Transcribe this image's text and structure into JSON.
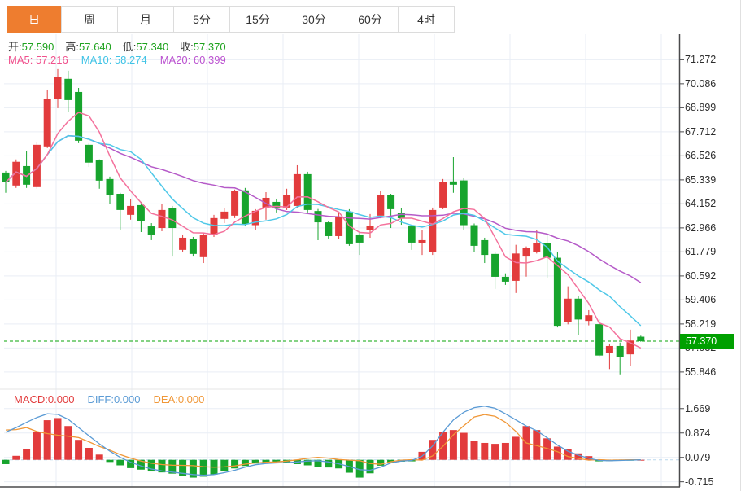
{
  "tabs": [
    {
      "label": "日",
      "active": true
    },
    {
      "label": "周",
      "active": false
    },
    {
      "label": "月",
      "active": false
    },
    {
      "label": "5分",
      "active": false
    },
    {
      "label": "15分",
      "active": false
    },
    {
      "label": "30分",
      "active": false
    },
    {
      "label": "60分",
      "active": false
    },
    {
      "label": "4时",
      "active": false
    }
  ],
  "info": {
    "ohlc": [
      {
        "label": "开:",
        "value": "57.590"
      },
      {
        "label": "高:",
        "value": "57.640"
      },
      {
        "label": "低:",
        "value": "57.340"
      },
      {
        "label": "收:",
        "value": "57.370"
      }
    ],
    "mas": [
      {
        "label": "MA5:",
        "value": "57.216",
        "color": "#f0508c"
      },
      {
        "label": "MA10:",
        "value": "58.274",
        "color": "#3fc3e6"
      },
      {
        "label": "MA20:",
        "value": "60.399",
        "color": "#bb52d0"
      }
    ]
  },
  "macd_info": [
    {
      "label": "MACD:",
      "value": "0.000",
      "color": "#e23b3c"
    },
    {
      "label": "DIFF:",
      "value": "0.000",
      "color": "#5b9bd5"
    },
    {
      "label": "DEA:",
      "value": "0.000",
      "color": "#f09737"
    }
  ],
  "price_axis": {
    "ticks": [
      "71.272",
      "70.086",
      "68.899",
      "67.712",
      "66.526",
      "65.339",
      "64.152",
      "62.966",
      "61.779",
      "60.592",
      "59.406",
      "58.219",
      "57.032",
      "55.846"
    ],
    "last_price": "57.370"
  },
  "macd_axis": {
    "ticks": [
      "1.669",
      "0.874",
      "0.079",
      "-0.715"
    ]
  },
  "colors": {
    "up": "#e23b3c",
    "down": "#17a42d",
    "ma5": "#f4719c",
    "ma10": "#4fc8e8",
    "ma20": "#b55ac8",
    "diff_line": "#5b9bd5",
    "dea_line": "#f09737",
    "accent_tab": "#ee7d2f",
    "last_price_badge": "#00a000",
    "grid": "#e9eef5",
    "axis": "#4a4a4c"
  },
  "chart_data": {
    "type": "candlestick",
    "title": "",
    "legend": [
      "MA5",
      "MA10",
      "MA20",
      "DIFF",
      "DEA",
      "MACD"
    ],
    "price_ticks": [
      71.272,
      70.086,
      68.899,
      67.712,
      66.526,
      65.339,
      64.152,
      62.966,
      61.779,
      60.592,
      59.406,
      58.219,
      57.032,
      55.846
    ],
    "macd_ticks": [
      1.669,
      0.874,
      0.079,
      -0.715
    ],
    "last_close": 57.37,
    "ohlc_today": {
      "open": 57.59,
      "high": 57.64,
      "low": 57.34,
      "close": 57.37
    },
    "ma_last": {
      "ma5": 57.216,
      "ma10": 58.274,
      "ma20": 60.399
    },
    "candles": [
      [
        65.7,
        65.78,
        64.7,
        65.22
      ],
      [
        65.06,
        66.35,
        64.94,
        66.23
      ],
      [
        66.02,
        66.75,
        64.94,
        65.1
      ],
      [
        64.98,
        67.19,
        64.9,
        67.07
      ],
      [
        66.99,
        69.8,
        66.91,
        69.32
      ],
      [
        69.32,
        70.81,
        68.88,
        70.41
      ],
      [
        70.33,
        70.73,
        68.68,
        69.28
      ],
      [
        69.68,
        69.88,
        67.15,
        67.27
      ],
      [
        67.07,
        67.15,
        65.98,
        66.19
      ],
      [
        66.31,
        66.35,
        64.9,
        65.3
      ],
      [
        65.38,
        65.5,
        64.17,
        64.57
      ],
      [
        64.65,
        64.7,
        62.88,
        63.85
      ],
      [
        63.61,
        64.37,
        63.37,
        64.05
      ],
      [
        64.09,
        64.25,
        62.76,
        63.29
      ],
      [
        63.04,
        63.2,
        62.36,
        62.64
      ],
      [
        62.96,
        64.17,
        62.8,
        63.85
      ],
      [
        63.93,
        64.05,
        61.55,
        62.96
      ],
      [
        61.88,
        62.64,
        61.76,
        62.48
      ],
      [
        62.4,
        62.52,
        61.55,
        61.68
      ],
      [
        61.52,
        62.72,
        61.23,
        62.6
      ],
      [
        62.64,
        63.61,
        62.52,
        63.45
      ],
      [
        63.41,
        63.93,
        63.2,
        63.77
      ],
      [
        63.57,
        64.86,
        63.45,
        64.78
      ],
      [
        64.82,
        64.94,
        63.04,
        63.14
      ],
      [
        63.1,
        63.89,
        62.84,
        63.81
      ],
      [
        63.97,
        64.73,
        63.37,
        64.45
      ],
      [
        64.25,
        64.41,
        63.73,
        63.97
      ],
      [
        63.97,
        64.9,
        63.85,
        64.61
      ],
      [
        64.05,
        66.06,
        63.95,
        65.62
      ],
      [
        65.62,
        65.74,
        63.73,
        63.85
      ],
      [
        63.8,
        63.9,
        62.36,
        63.24
      ],
      [
        63.24,
        63.32,
        62.44,
        62.56
      ],
      [
        62.56,
        63.73,
        62.4,
        63.5
      ],
      [
        63.77,
        63.89,
        62.08,
        62.16
      ],
      [
        62.64,
        62.72,
        61.63,
        62.24
      ],
      [
        62.84,
        63.65,
        62.48,
        63.08
      ],
      [
        63.57,
        64.77,
        63.44,
        64.57
      ],
      [
        64.57,
        64.65,
        62.96,
        63.89
      ],
      [
        63.69,
        63.93,
        63.12,
        63.44
      ],
      [
        63.04,
        63.12,
        61.88,
        62.24
      ],
      [
        62.2,
        62.88,
        61.63,
        62.36
      ],
      [
        61.76,
        63.97,
        61.63,
        63.85
      ],
      [
        63.97,
        65.38,
        63.89,
        65.25
      ],
      [
        65.26,
        66.46,
        64.7,
        65.1
      ],
      [
        65.31,
        65.43,
        62.84,
        63.1
      ],
      [
        63.1,
        63.18,
        61.76,
        62.08
      ],
      [
        62.36,
        62.48,
        61.23,
        61.63
      ],
      [
        61.68,
        61.76,
        59.95,
        60.55
      ],
      [
        60.55,
        60.72,
        60.15,
        60.31
      ],
      [
        60.35,
        62.13,
        59.75,
        61.7
      ],
      [
        61.55,
        62.05,
        60.56,
        61.96
      ],
      [
        61.76,
        62.84,
        61.7,
        62.23
      ],
      [
        62.23,
        62.6,
        60.49,
        61.49
      ],
      [
        61.49,
        61.77,
        58.05,
        58.13
      ],
      [
        58.3,
        60.08,
        58.2,
        59.47
      ],
      [
        59.47,
        59.6,
        57.68,
        58.44
      ],
      [
        58.37,
        58.9,
        58.15,
        58.65
      ],
      [
        58.21,
        58.45,
        56.56,
        56.66
      ],
      [
        56.79,
        57.25,
        55.99,
        57.13
      ],
      [
        57.13,
        57.3,
        55.73,
        56.59
      ],
      [
        56.72,
        57.94,
        56.13,
        57.4
      ],
      [
        57.59,
        57.64,
        57.34,
        57.37
      ]
    ],
    "macd": {
      "hist": [
        -0.14,
        0.13,
        0.34,
        0.92,
        1.29,
        1.36,
        1.1,
        0.65,
        0.39,
        0.17,
        -0.07,
        -0.18,
        -0.27,
        -0.32,
        -0.38,
        -0.41,
        -0.45,
        -0.52,
        -0.58,
        -0.55,
        -0.48,
        -0.38,
        -0.28,
        -0.2,
        -0.12,
        -0.08,
        -0.06,
        -0.1,
        -0.14,
        -0.18,
        -0.22,
        -0.25,
        -0.28,
        -0.42,
        -0.58,
        -0.44,
        -0.19,
        -0.08,
        -0.06,
        -0.05,
        0.26,
        0.65,
        0.92,
        0.97,
        0.88,
        0.61,
        0.55,
        0.52,
        0.55,
        0.75,
        1.1,
        0.97,
        0.7,
        0.43,
        0.34,
        0.21,
        0.12,
        -0.05,
        -0.04,
        -0.03,
        -0.02,
        0.0
      ],
      "diff": [
        0.9,
        1.05,
        1.22,
        1.38,
        1.5,
        1.48,
        1.32,
        1.05,
        0.78,
        0.52,
        0.28,
        0.08,
        -0.08,
        -0.2,
        -0.3,
        -0.36,
        -0.4,
        -0.44,
        -0.48,
        -0.5,
        -0.48,
        -0.42,
        -0.34,
        -0.24,
        -0.16,
        -0.12,
        -0.1,
        -0.09,
        -0.07,
        -0.04,
        -0.03,
        -0.07,
        -0.13,
        -0.22,
        -0.32,
        -0.34,
        -0.24,
        -0.1,
        -0.04,
        -0.02,
        0.12,
        0.45,
        0.9,
        1.3,
        1.55,
        1.7,
        1.75,
        1.68,
        1.5,
        1.3,
        1.1,
        0.95,
        0.72,
        0.48,
        0.28,
        0.15,
        0.05,
        -0.02,
        -0.03,
        -0.02,
        -0.01,
        0.0
      ]
    }
  }
}
